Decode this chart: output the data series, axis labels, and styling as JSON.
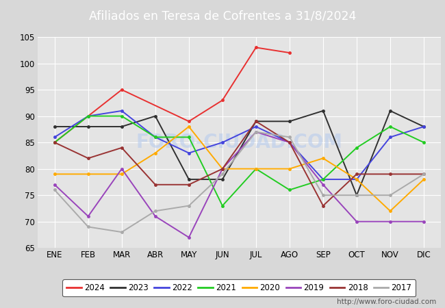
{
  "title": "Afiliados en Teresa de Cofrentes a 31/8/2024",
  "header_bg": "#4a6fa5",
  "months": [
    "ENE",
    "FEB",
    "MAR",
    "ABR",
    "MAY",
    "JUN",
    "JUL",
    "AGO",
    "SEP",
    "OCT",
    "NOV",
    "DIC"
  ],
  "ylim": [
    65,
    105
  ],
  "yticks": [
    65,
    70,
    75,
    80,
    85,
    90,
    95,
    100,
    105
  ],
  "series": {
    "2024": {
      "color": "#e83030",
      "values": [
        85,
        null,
        95,
        null,
        89,
        93,
        103,
        102,
        null,
        null,
        null,
        null
      ]
    },
    "2023": {
      "color": "#303030",
      "values": [
        88,
        88,
        88,
        90,
        78,
        78,
        89,
        89,
        91,
        75,
        91,
        88
      ]
    },
    "2022": {
      "color": "#4444dd",
      "values": [
        86,
        90,
        91,
        86,
        83,
        85,
        88,
        85,
        78,
        78,
        86,
        88
      ]
    },
    "2021": {
      "color": "#22cc22",
      "values": [
        85,
        90,
        90,
        86,
        86,
        73,
        80,
        76,
        78,
        84,
        88,
        85
      ]
    },
    "2020": {
      "color": "#ffaa00",
      "values": [
        79,
        79,
        79,
        83,
        88,
        80,
        80,
        80,
        82,
        78,
        72,
        78
      ]
    },
    "2019": {
      "color": "#9944bb",
      "values": [
        77,
        71,
        80,
        71,
        67,
        80,
        87,
        85,
        77,
        70,
        70,
        70
      ]
    },
    "2018": {
      "color": "#993333",
      "values": [
        85,
        82,
        84,
        77,
        77,
        80,
        89,
        85,
        73,
        79,
        79,
        79
      ]
    },
    "2017": {
      "color": "#aaaaaa",
      "values": [
        76,
        69,
        68,
        72,
        73,
        79,
        87,
        86,
        75,
        75,
        75,
        79
      ]
    }
  },
  "legend_order": [
    "2024",
    "2023",
    "2022",
    "2021",
    "2020",
    "2019",
    "2018",
    "2017"
  ],
  "watermark": "FORO-CIUDAD.COM",
  "footer_url": "http://www.foro-ciudad.com",
  "bg_color": "#d8d8d8",
  "plot_bg_color": "#e4e4e4",
  "grid_color": "#ffffff"
}
